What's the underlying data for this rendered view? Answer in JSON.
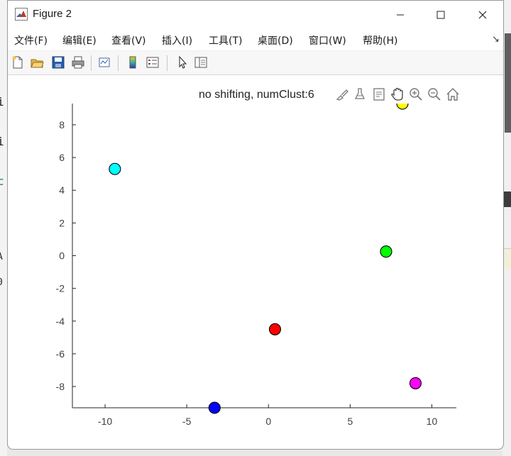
{
  "window": {
    "title": "Figure 2",
    "controls": {
      "minimize": "—",
      "maximize": "☐",
      "close": "✕"
    }
  },
  "menu": {
    "items": [
      "文件(F)",
      "编辑(E)",
      "查看(V)",
      "插入(I)",
      "工具(T)",
      "桌面(D)",
      "窗口(W)",
      "帮助(H)"
    ],
    "overflow": "↘"
  },
  "toolbar": {
    "buttons": [
      "new-figure-icon",
      "open-icon",
      "save-icon",
      "print-icon",
      "link-plot-icon",
      "colorbar-icon",
      "legend-icon",
      "pointer-icon",
      "property-inspector-icon"
    ]
  },
  "axes_toolbar": {
    "buttons": [
      "brush-icon",
      "data-tips-icon",
      "restore-icon",
      "pan-icon",
      "zoom-in-icon",
      "zoom-out-icon",
      "home-icon"
    ]
  },
  "background_fragments": [
    "i",
    "i",
    "c",
    "A",
    "0"
  ],
  "chart_data": {
    "type": "scatter",
    "title": "no shifting, numClust:6",
    "xlabel": "",
    "ylabel": "",
    "xlim": [
      -12,
      11.5
    ],
    "ylim": [
      -9.3,
      9.3
    ],
    "xticks": [
      -10,
      -5,
      0,
      5,
      10
    ],
    "yticks": [
      -8,
      -6,
      -4,
      -2,
      0,
      2,
      4,
      6,
      8
    ],
    "grid": false,
    "points": [
      {
        "x": -9.4,
        "y": 5.3,
        "color": "#00ffff"
      },
      {
        "x": 8.2,
        "y": 9.3,
        "color": "#ffff00"
      },
      {
        "x": 7.2,
        "y": 0.25,
        "color": "#00ff00"
      },
      {
        "x": 0.4,
        "y": -4.5,
        "color": "#ff0000"
      },
      {
        "x": 9.0,
        "y": -7.8,
        "color": "#ff00ff"
      },
      {
        "x": -3.3,
        "y": -9.3,
        "color": "#0000ff"
      }
    ]
  }
}
